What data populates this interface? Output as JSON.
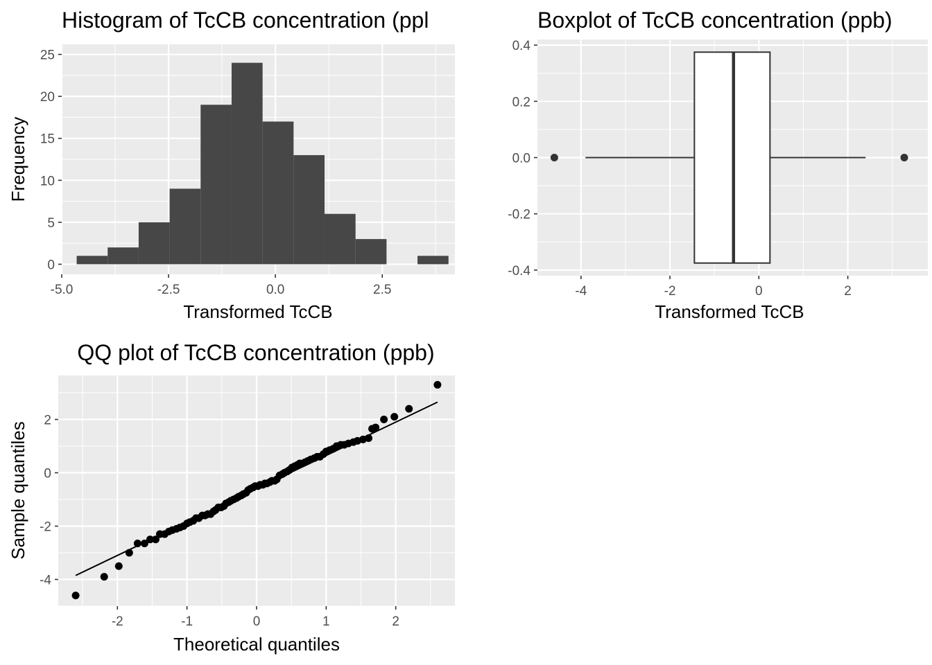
{
  "chart_data": [
    {
      "type": "histogram",
      "title": "Histogram of TcCB concentration (ppl",
      "xlabel": "Transformed TcCB",
      "ylabel": "Frequency",
      "xlim": [
        -5.0,
        4.2
      ],
      "ylim": [
        -1.2,
        26.2
      ],
      "x_ticks": [
        -5.0,
        -2.5,
        0.0,
        2.5
      ],
      "x_tick_labels": [
        "-5.0",
        "-2.5",
        "0.0",
        "2.5"
      ],
      "y_ticks": [
        0,
        5,
        10,
        15,
        20,
        25
      ],
      "y_tick_labels": [
        "0",
        "5",
        "10",
        "15",
        "20",
        "25"
      ],
      "bins": [
        {
          "x0": -4.65,
          "x1": -3.925,
          "count": 1
        },
        {
          "x0": -3.925,
          "x1": -3.2,
          "count": 2
        },
        {
          "x0": -3.2,
          "x1": -2.475,
          "count": 5
        },
        {
          "x0": -2.475,
          "x1": -1.75,
          "count": 9
        },
        {
          "x0": -1.75,
          "x1": -1.025,
          "count": 19
        },
        {
          "x0": -1.025,
          "x1": -0.3,
          "count": 24
        },
        {
          "x0": -0.3,
          "x1": 0.425,
          "count": 17
        },
        {
          "x0": 0.425,
          "x1": 1.15,
          "count": 13
        },
        {
          "x0": 1.15,
          "x1": 1.875,
          "count": 6
        },
        {
          "x0": 1.875,
          "x1": 2.6,
          "count": 3
        },
        {
          "x0": 2.6,
          "x1": 3.325,
          "count": 0
        },
        {
          "x0": 3.325,
          "x1": 4.05,
          "count": 1
        }
      ],
      "grid": true
    },
    {
      "type": "boxplot",
      "title": "Boxplot of TcCB concentration (ppb)",
      "xlabel": "Transformed TcCB",
      "ylabel": "",
      "xlim": [
        -4.98,
        3.8
      ],
      "ylim": [
        -0.42,
        0.42
      ],
      "x_ticks": [
        -4,
        -2,
        0,
        2
      ],
      "x_tick_labels": [
        "-4",
        "-2",
        "0",
        "2"
      ],
      "y_ticks": [
        -0.4,
        -0.2,
        0.0,
        0.2,
        0.4
      ],
      "y_tick_labels": [
        "-0.4",
        "-0.2",
        "0.0",
        "0.2",
        "0.4"
      ],
      "stats": {
        "lower_whisker": -3.9,
        "q1": -1.45,
        "median": -0.57,
        "q3": 0.25,
        "upper_whisker": 2.4
      },
      "outliers": [
        -4.6,
        3.27
      ],
      "box_y_range": [
        -0.375,
        0.375
      ],
      "grid": true
    },
    {
      "type": "scatter",
      "title": "QQ plot of TcCB concentration (ppb)",
      "xlabel": "Theoretical quantiles",
      "ylabel": "Sample quantiles",
      "xlim": [
        -2.85,
        2.85
      ],
      "ylim": [
        -5.0,
        3.65
      ],
      "x_ticks": [
        -2,
        -1,
        0,
        1,
        2
      ],
      "x_tick_labels": [
        "-2",
        "-1",
        "0",
        "1",
        "2"
      ],
      "y_ticks": [
        -4,
        -2,
        0,
        2
      ],
      "y_tick_labels": [
        "-4",
        "-2",
        "0",
        "2"
      ],
      "points": [
        [
          -2.6,
          -4.6
        ],
        [
          -2.19,
          -3.9
        ],
        [
          -1.98,
          -3.5
        ],
        [
          -1.83,
          -3.0
        ],
        [
          -1.71,
          -2.65
        ],
        [
          -1.61,
          -2.65
        ],
        [
          -1.53,
          -2.5
        ],
        [
          -1.45,
          -2.5
        ],
        [
          -1.39,
          -2.3
        ],
        [
          -1.32,
          -2.3
        ],
        [
          -1.26,
          -2.2
        ],
        [
          -1.21,
          -2.15
        ],
        [
          -1.15,
          -2.1
        ],
        [
          -1.1,
          -2.05
        ],
        [
          -1.05,
          -2.0
        ],
        [
          -1.0,
          -1.9
        ],
        [
          -0.96,
          -1.85
        ],
        [
          -0.91,
          -1.8
        ],
        [
          -0.87,
          -1.7
        ],
        [
          -0.83,
          -1.7
        ],
        [
          -0.78,
          -1.6
        ],
        [
          -0.74,
          -1.6
        ],
        [
          -0.7,
          -1.55
        ],
        [
          -0.66,
          -1.55
        ],
        [
          -0.62,
          -1.45
        ],
        [
          -0.59,
          -1.4
        ],
        [
          -0.55,
          -1.3
        ],
        [
          -0.51,
          -1.3
        ],
        [
          -0.47,
          -1.25
        ],
        [
          -0.44,
          -1.15
        ],
        [
          -0.4,
          -1.1
        ],
        [
          -0.37,
          -1.05
        ],
        [
          -0.33,
          -1.0
        ],
        [
          -0.29,
          -0.95
        ],
        [
          -0.26,
          -0.9
        ],
        [
          -0.22,
          -0.85
        ],
        [
          -0.19,
          -0.8
        ],
        [
          -0.15,
          -0.75
        ],
        [
          -0.12,
          -0.65
        ],
        [
          -0.09,
          -0.6
        ],
        [
          -0.05,
          -0.55
        ],
        [
          -0.02,
          -0.5
        ],
        [
          0.02,
          -0.5
        ],
        [
          0.05,
          -0.45
        ],
        [
          0.09,
          -0.45
        ],
        [
          0.12,
          -0.4
        ],
        [
          0.15,
          -0.4
        ],
        [
          0.19,
          -0.35
        ],
        [
          0.22,
          -0.3
        ],
        [
          0.26,
          -0.3
        ],
        [
          0.29,
          -0.25
        ],
        [
          0.33,
          -0.1
        ],
        [
          0.37,
          -0.05
        ],
        [
          0.4,
          0.0
        ],
        [
          0.44,
          0.05
        ],
        [
          0.47,
          0.1
        ],
        [
          0.51,
          0.2
        ],
        [
          0.55,
          0.25
        ],
        [
          0.59,
          0.3
        ],
        [
          0.62,
          0.35
        ],
        [
          0.66,
          0.35
        ],
        [
          0.7,
          0.4
        ],
        [
          0.74,
          0.45
        ],
        [
          0.78,
          0.5
        ],
        [
          0.83,
          0.55
        ],
        [
          0.87,
          0.6
        ],
        [
          0.91,
          0.6
        ],
        [
          0.96,
          0.7
        ],
        [
          1.0,
          0.8
        ],
        [
          1.05,
          0.85
        ],
        [
          1.1,
          0.9
        ],
        [
          1.15,
          1.0
        ],
        [
          1.21,
          1.05
        ],
        [
          1.26,
          1.05
        ],
        [
          1.32,
          1.1
        ],
        [
          1.39,
          1.15
        ],
        [
          1.45,
          1.2
        ],
        [
          1.53,
          1.25
        ],
        [
          1.61,
          1.3
        ],
        [
          1.66,
          1.65
        ],
        [
          1.71,
          1.7
        ],
        [
          1.83,
          2.0
        ],
        [
          1.98,
          2.1
        ],
        [
          2.19,
          2.4
        ],
        [
          2.6,
          3.3
        ]
      ],
      "reference_line": {
        "x": [
          -2.6,
          2.6
        ],
        "y": [
          -3.85,
          2.65
        ]
      },
      "grid": true
    }
  ]
}
